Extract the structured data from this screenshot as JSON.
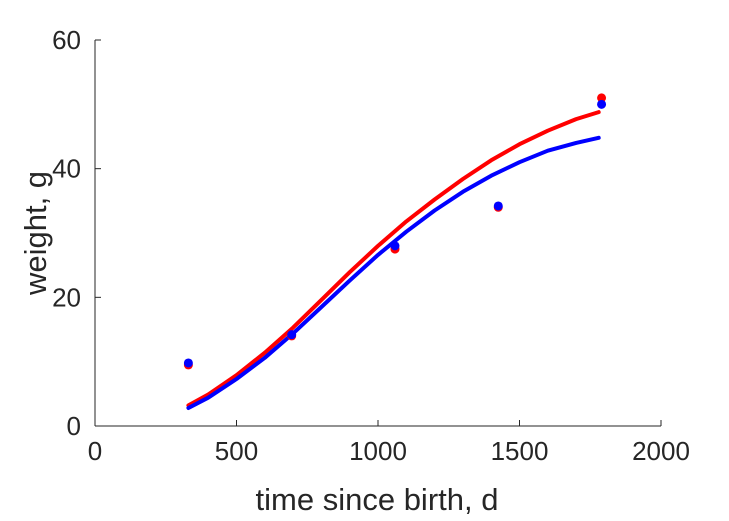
{
  "chart_data": {
    "type": "scatter",
    "title": "",
    "xlabel": "time since birth, d",
    "ylabel": "weight, g",
    "xlim": [
      0,
      2000
    ],
    "ylim": [
      0,
      60
    ],
    "xticks": [
      0,
      500,
      1000,
      1500,
      2000
    ],
    "yticks": [
      0,
      20,
      40,
      60
    ],
    "xtick_labels": [
      "0",
      "500",
      "1000",
      "1500",
      "2000"
    ],
    "ytick_labels": [
      "0",
      "20",
      "40",
      "60"
    ],
    "grid": false,
    "legend": "none",
    "series": [
      {
        "kind": "points",
        "color": "#ff0000",
        "x": [
          330,
          695,
          1060,
          1425,
          1790
        ],
        "y": [
          9.5,
          14.0,
          27.5,
          34.0,
          51.0
        ]
      },
      {
        "kind": "points",
        "color": "#0000ff",
        "x": [
          330,
          695,
          1060,
          1425,
          1790
        ],
        "y": [
          9.8,
          14.2,
          28.0,
          34.2,
          50.0
        ]
      },
      {
        "kind": "line",
        "color": "#ff0000",
        "x": [
          330,
          400,
          500,
          600,
          700,
          800,
          900,
          1000,
          1100,
          1200,
          1300,
          1400,
          1500,
          1600,
          1700,
          1780
        ],
        "y": [
          3.2,
          4.9,
          7.9,
          11.4,
          15.3,
          19.6,
          23.9,
          28.0,
          31.8,
          35.2,
          38.4,
          41.3,
          43.8,
          45.9,
          47.7,
          48.8
        ]
      },
      {
        "kind": "line",
        "color": "#0000ff",
        "x": [
          330,
          400,
          500,
          600,
          700,
          800,
          900,
          1000,
          1100,
          1200,
          1300,
          1400,
          1500,
          1600,
          1700,
          1780
        ],
        "y": [
          2.8,
          4.4,
          7.3,
          10.6,
          14.4,
          18.5,
          22.6,
          26.6,
          30.2,
          33.5,
          36.4,
          38.9,
          41.0,
          42.8,
          44.0,
          44.8
        ]
      }
    ]
  }
}
